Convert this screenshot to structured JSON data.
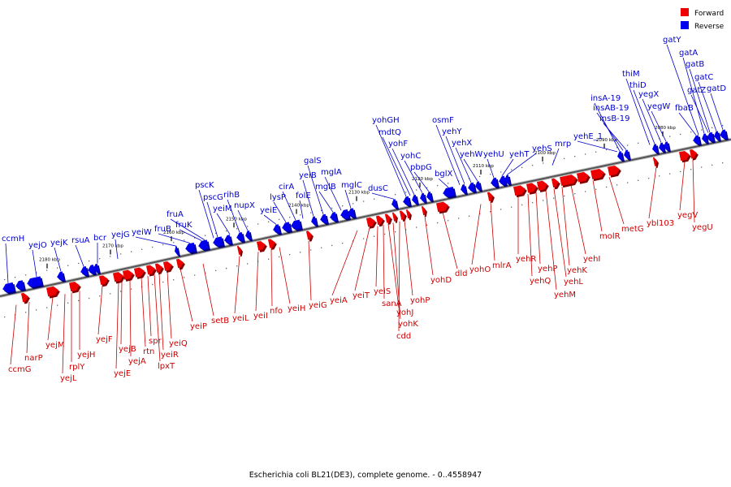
{
  "caption": "Escherichia coli BL21(DE3), complete genome. - 0..4558947",
  "legend": [
    {
      "label": "Forward",
      "color": "#ee0000"
    },
    {
      "label": "Reverse",
      "color": "#0000ee"
    }
  ],
  "colors": {
    "forward": "#ee0000",
    "reverse": "#0000ee",
    "backbone": "#555555",
    "forward_label": "#cc0000",
    "reverse_label": "#0000cc"
  },
  "ticks": [
    "2180 kbp",
    "2170 kbp",
    "2160 kbp",
    "2150 kbp",
    "2140 kbp",
    "2130 kbp",
    "2120 kbp",
    "2110 kbp",
    "2100 kbp",
    "2090 kbp",
    "2080 kbp"
  ],
  "reverse_genes": [
    "ccmH",
    "yejO",
    "yejK",
    "rsuA",
    "bcr",
    "yejG",
    "yeiW",
    "fruB",
    "fruK",
    "fruA",
    "pscK",
    "pscG",
    "yeiM",
    "rihB",
    "nupX",
    "yeiE",
    "lysP",
    "cirA",
    "folE",
    "yeiB",
    "galS",
    "mglB",
    "mglA",
    "mglC",
    "dusC",
    "yohGH",
    "mdtQ",
    "yohF",
    "yohC",
    "pbpG",
    "bglX",
    "osmF",
    "yehY",
    "yehX",
    "yehW",
    "yehU",
    "yehT",
    "yehS",
    "mrp",
    "yehE_1",
    "insA-19",
    "insAB-19",
    "insB-19",
    "thiM",
    "thiD",
    "yegX",
    "yegW",
    "fbaB",
    "gatY",
    "gatA",
    "gatB",
    "gatC",
    "gatZ",
    "gatD"
  ],
  "forward_genes": [
    "ccmG",
    "narP",
    "yejM",
    "yejL",
    "rplY",
    "yejH",
    "yejF",
    "yejE",
    "yejB",
    "yejA",
    "rtn",
    "spr",
    "lpxT",
    "yeiR",
    "yeiQ",
    "yeiP",
    "setB",
    "yeiL",
    "yeiI",
    "nfo",
    "yeiH",
    "yeiG",
    "yeiA",
    "yeiT",
    "yeiS",
    "sanA",
    "yohJ",
    "yohK",
    "cdd",
    "yohP",
    "yohD",
    "dld",
    "yohO",
    "mlrA",
    "yehR",
    "yehQ",
    "yehP",
    "yehM",
    "yehL",
    "yehK",
    "yehI",
    "molR",
    "metG",
    "ybl103",
    "yegV",
    "yegU"
  ]
}
